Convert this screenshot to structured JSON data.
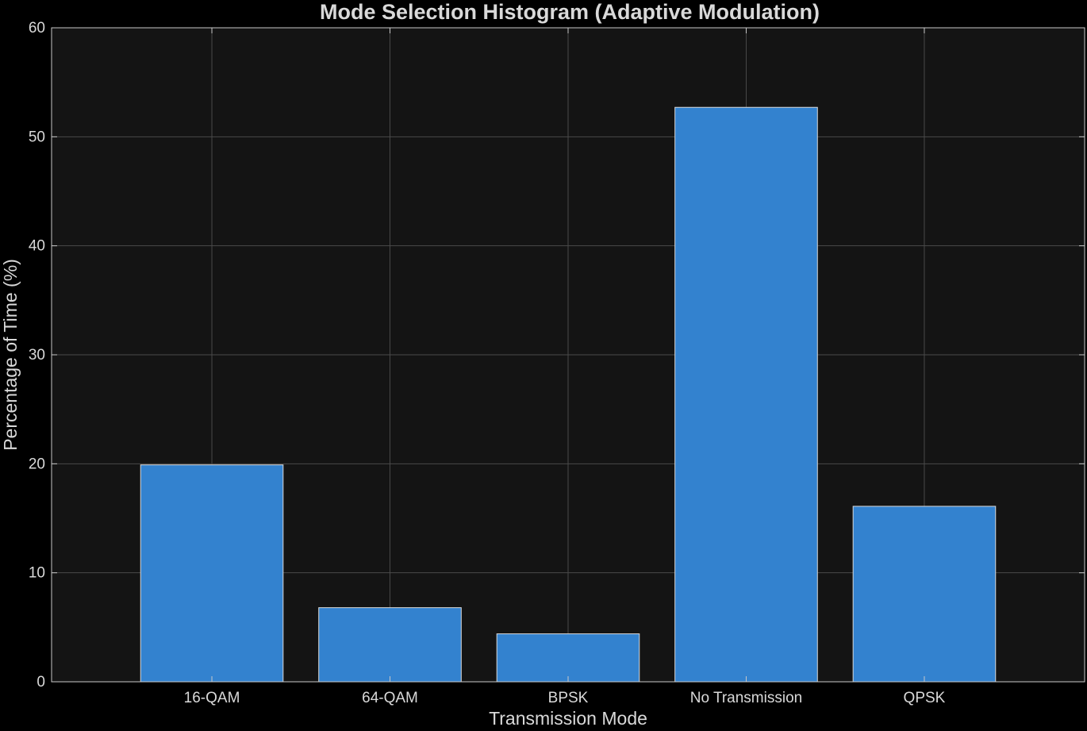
{
  "chart_data": {
    "type": "bar",
    "title": "Mode Selection Histogram (Adaptive Modulation)",
    "xlabel": "Transmission Mode",
    "ylabel": "Percentage of Time (%)",
    "categories": [
      "16-QAM",
      "64-QAM",
      "BPSK",
      "No Transmission",
      "QPSK"
    ],
    "values": [
      19.9,
      6.8,
      4.4,
      52.7,
      16.1
    ],
    "ylim": [
      0,
      60
    ],
    "yticks": [
      0,
      10,
      20,
      30,
      40,
      50,
      60
    ],
    "grid": true,
    "legend": false
  },
  "colors": {
    "page_background": "#000000",
    "plot_background": "#141414",
    "bar_fill": "#3382cf",
    "bar_edge": "#d9d9d9",
    "grid": "#4a4a4a",
    "axis": "#c8c8c8",
    "text": "#d9d9d9"
  }
}
